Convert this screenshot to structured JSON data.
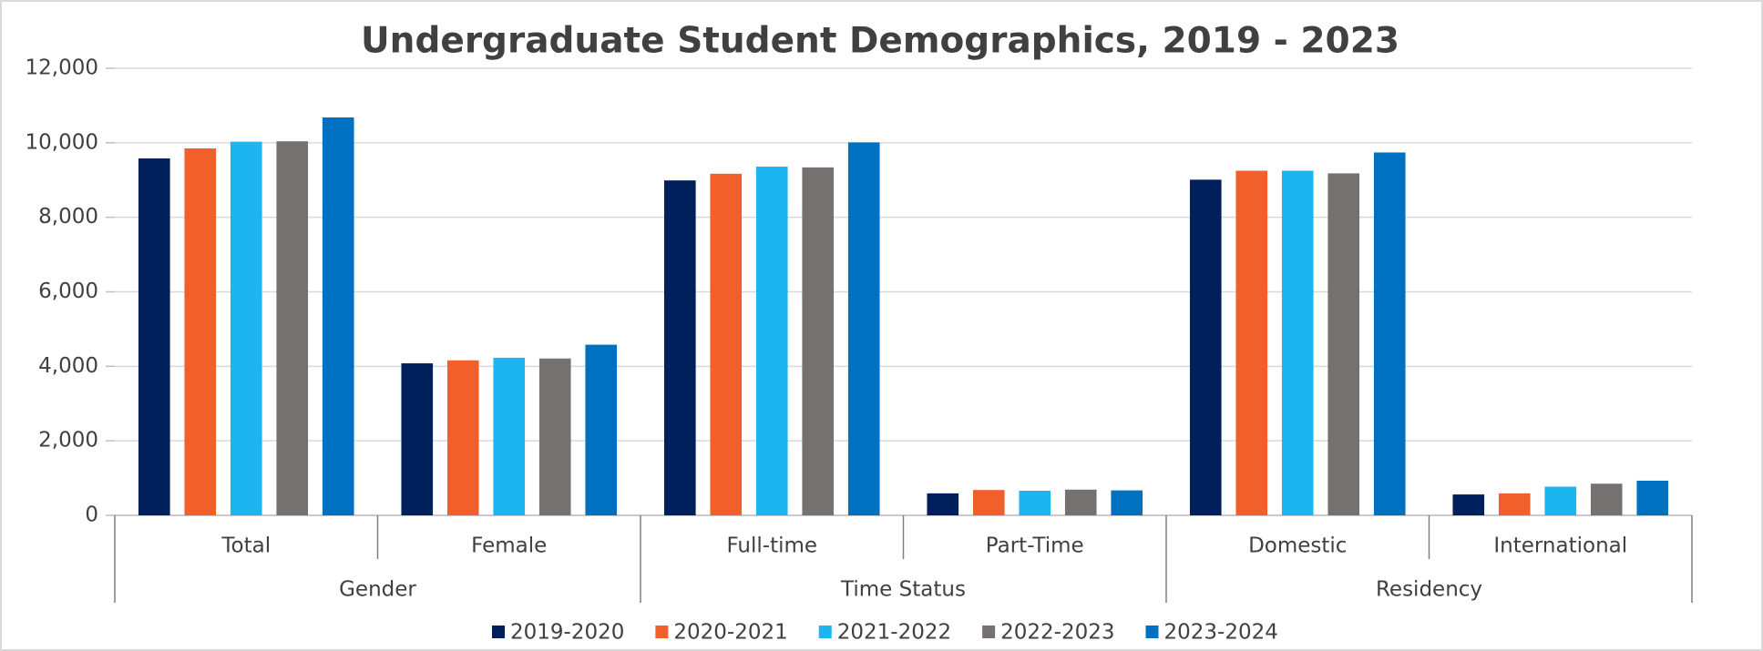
{
  "chart_data": {
    "type": "bar",
    "title": "Undergraduate Student Demographics, 2019 - 2023",
    "groups": [
      {
        "name": "Gender",
        "categories": [
          "Total",
          "Female"
        ]
      },
      {
        "name": "Time Status",
        "categories": [
          "Full-time",
          "Part-Time"
        ]
      },
      {
        "name": "Residency",
        "categories": [
          "Domestic",
          "International"
        ]
      }
    ],
    "series": [
      {
        "name": "2019-2020",
        "color": "#00205b",
        "values": [
          9580,
          4080,
          8990,
          590,
          9010,
          560
        ]
      },
      {
        "name": "2020-2021",
        "color": "#f15f2a",
        "values": [
          9850,
          4160,
          9170,
          680,
          9250,
          590
        ]
      },
      {
        "name": "2021-2022",
        "color": "#1cb5ef",
        "values": [
          10030,
          4230,
          9360,
          660,
          9250,
          770
        ]
      },
      {
        "name": "2022-2023",
        "color": "#767171",
        "values": [
          10040,
          4210,
          9340,
          690,
          9180,
          850
        ]
      },
      {
        "name": "2023-2024",
        "color": "#0070c0",
        "values": [
          10680,
          4580,
          10010,
          670,
          9740,
          930
        ]
      }
    ],
    "ylim": [
      0,
      12000
    ],
    "yticks": [
      0,
      {
        "value": 2000,
        "label": "2,000"
      },
      {
        "value": 4000,
        "label": "4,000"
      },
      {
        "value": 6000,
        "label": "6,000"
      },
      {
        "value": 8000,
        "label": "8,000"
      },
      {
        "value": 10000,
        "label": "10,000"
      },
      {
        "value": 12000,
        "label": "12,000"
      }
    ],
    "grid": true,
    "legend": "bottom"
  }
}
